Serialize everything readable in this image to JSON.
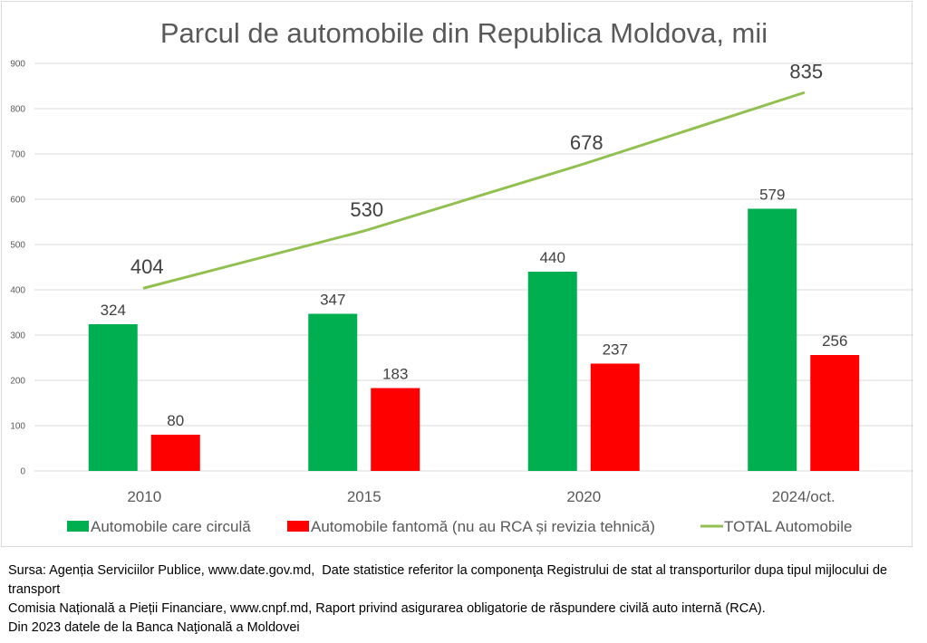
{
  "chart_data": {
    "type": "bar",
    "title": "Parcul de automobile din Republica Moldova, mii",
    "xlabel": "",
    "ylabel": "",
    "categories": [
      "2010",
      "2015",
      "2020",
      "2024/oct."
    ],
    "ylim": [
      0,
      900
    ],
    "yticks": [
      0,
      100,
      200,
      300,
      400,
      500,
      600,
      700,
      800,
      900
    ],
    "grid": true,
    "legend_position": "bottom",
    "series": [
      {
        "name": "Automobile care circulă",
        "kind": "bar",
        "color": "#00B050",
        "values": [
          324,
          347,
          440,
          579
        ]
      },
      {
        "name": "Automobile fantomă (nu au RCA și revizia tehnică)",
        "kind": "bar",
        "color": "#FF0000",
        "values": [
          80,
          183,
          237,
          256
        ]
      },
      {
        "name": "TOTAL Automobile",
        "kind": "line",
        "color": "#92C050",
        "values": [
          404,
          530,
          678,
          835
        ]
      }
    ]
  },
  "source": {
    "lines": [
      "Sursa: Agenția Serviciilor Publice, www.date.gov.md,  Date statistice referitor la componenţa Registrului de stat al transporturilor dupa tipul mijlocului de transport",
      "Comisia Națională a Pieții Financiare, www.cnpf.md, Raport privind asigurarea obligatorie de răspundere civilă auto internă (RCA).",
      "Din 2023 datele de la Banca Naţională a Moldovei"
    ]
  }
}
